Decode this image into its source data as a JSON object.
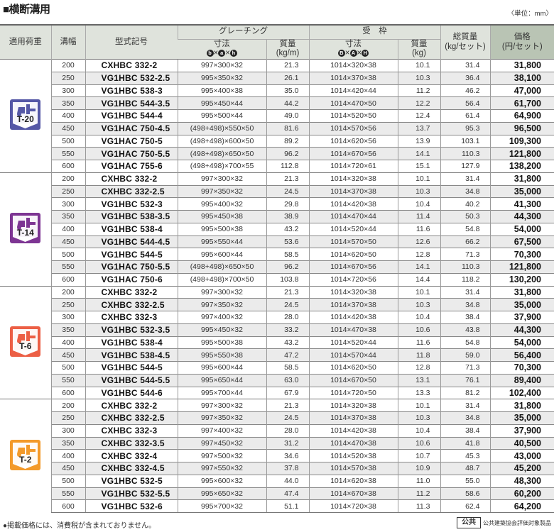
{
  "title": "■横断溝用",
  "unit": "〈単位：mm〉",
  "header": {
    "load": "適用荷重",
    "width": "溝幅",
    "model": "型式記号",
    "grating": "グレーチング",
    "frame": "受　枠",
    "dims": "寸法",
    "grating_dim_letters": [
      "b",
      "a",
      "h"
    ],
    "frame_dim_letters": [
      "B",
      "A",
      "H"
    ],
    "grating_mass": [
      "質量",
      "(kg/m)"
    ],
    "frame_mass": [
      "質量",
      "(kg)"
    ],
    "total": [
      "総質量",
      "(kg/セット)"
    ],
    "price": [
      "価格",
      "(円/セット)"
    ]
  },
  "groups": [
    {
      "load": "T-20",
      "color": "#5558a6",
      "rows": [
        [
          "200",
          "CXHBC 332-2",
          "997×300×32",
          "21.3",
          "1014×320×38",
          "10.1",
          "31.4",
          "31,800"
        ],
        [
          "250",
          "VG1HBC 532-2.5",
          "995×350×32",
          "26.1",
          "1014×370×38",
          "10.3",
          "36.4",
          "38,100"
        ],
        [
          "300",
          "VG1HBC 538-3",
          "995×400×38",
          "35.0",
          "1014×420×44",
          "11.2",
          "46.2",
          "47,000"
        ],
        [
          "350",
          "VG1HBC 544-3.5",
          "995×450×44",
          "44.2",
          "1014×470×50",
          "12.2",
          "56.4",
          "61,700"
        ],
        [
          "400",
          "VG1HBC 544-4",
          "995×500×44",
          "49.0",
          "1014×520×50",
          "12.4",
          "61.4",
          "64,900"
        ],
        [
          "450",
          "VG1HAC 750-4.5",
          "(498+498)×550×50",
          "81.6",
          "1014×570×56",
          "13.7",
          "95.3",
          "96,500"
        ],
        [
          "500",
          "VG1HAC 750-5",
          "(498+498)×600×50",
          "89.2",
          "1014×620×56",
          "13.9",
          "103.1",
          "109,300"
        ],
        [
          "550",
          "VG1HAC 750-5.5",
          "(498+498)×650×50",
          "96.2",
          "1014×670×56",
          "14.1",
          "110.3",
          "121,800"
        ],
        [
          "600",
          "VG1HAC 755-6",
          "(498+498)×700×55",
          "112.8",
          "1014×720×61",
          "15.1",
          "127.9",
          "138,200"
        ]
      ]
    },
    {
      "load": "T-14",
      "color": "#7d3593",
      "rows": [
        [
          "200",
          "CXHBC 332-2",
          "997×300×32",
          "21.3",
          "1014×320×38",
          "10.1",
          "31.4",
          "31,800"
        ],
        [
          "250",
          "CXHBC 332-2.5",
          "997×350×32",
          "24.5",
          "1014×370×38",
          "10.3",
          "34.8",
          "35,000"
        ],
        [
          "300",
          "VG1HBC 532-3",
          "995×400×32",
          "29.8",
          "1014×420×38",
          "10.4",
          "40.2",
          "41,300"
        ],
        [
          "350",
          "VG1HBC 538-3.5",
          "995×450×38",
          "38.9",
          "1014×470×44",
          "11.4",
          "50.3",
          "44,300"
        ],
        [
          "400",
          "VG1HBC 538-4",
          "995×500×38",
          "43.2",
          "1014×520×44",
          "11.6",
          "54.8",
          "54,000"
        ],
        [
          "450",
          "VG1HBC 544-4.5",
          "995×550×44",
          "53.6",
          "1014×570×50",
          "12.6",
          "66.2",
          "67,500"
        ],
        [
          "500",
          "VG1HBC 544-5",
          "995×600×44",
          "58.5",
          "1014×620×50",
          "12.8",
          "71.3",
          "70,300"
        ],
        [
          "550",
          "VG1HAC 750-5.5",
          "(498+498)×650×50",
          "96.2",
          "1014×670×56",
          "14.1",
          "110.3",
          "121,800"
        ],
        [
          "600",
          "VG1HAC 750-6",
          "(498+498)×700×50",
          "103.8",
          "1014×720×56",
          "14.4",
          "118.2",
          "130,200"
        ]
      ]
    },
    {
      "load": "T-6",
      "color": "#ec5f45",
      "rows": [
        [
          "200",
          "CXHBC 332-2",
          "997×300×32",
          "21.3",
          "1014×320×38",
          "10.1",
          "31.4",
          "31,800"
        ],
        [
          "250",
          "CXHBC 332-2.5",
          "997×350×32",
          "24.5",
          "1014×370×38",
          "10.3",
          "34.8",
          "35,000"
        ],
        [
          "300",
          "CXHBC 332-3",
          "997×400×32",
          "28.0",
          "1014×420×38",
          "10.4",
          "38.4",
          "37,900"
        ],
        [
          "350",
          "VG1HBC 532-3.5",
          "995×450×32",
          "33.2",
          "1014×470×38",
          "10.6",
          "43.8",
          "44,300"
        ],
        [
          "400",
          "VG1HBC 538-4",
          "995×500×38",
          "43.2",
          "1014×520×44",
          "11.6",
          "54.8",
          "54,000"
        ],
        [
          "450",
          "VG1HBC 538-4.5",
          "995×550×38",
          "47.2",
          "1014×570×44",
          "11.8",
          "59.0",
          "56,400"
        ],
        [
          "500",
          "VG1HBC 544-5",
          "995×600×44",
          "58.5",
          "1014×620×50",
          "12.8",
          "71.3",
          "70,300"
        ],
        [
          "550",
          "VG1HBC 544-5.5",
          "995×650×44",
          "63.0",
          "1014×670×50",
          "13.1",
          "76.1",
          "89,400"
        ],
        [
          "600",
          "VG1HBC 544-6",
          "995×700×44",
          "67.9",
          "1014×720×50",
          "13.3",
          "81.2",
          "102,400"
        ]
      ]
    },
    {
      "load": "T-2",
      "color": "#f39a2a",
      "rows": [
        [
          "200",
          "CXHBC 332-2",
          "997×300×32",
          "21.3",
          "1014×320×38",
          "10.1",
          "31.4",
          "31,800"
        ],
        [
          "250",
          "CXHBC 332-2.5",
          "997×350×32",
          "24.5",
          "1014×370×38",
          "10.3",
          "34.8",
          "35,000"
        ],
        [
          "300",
          "CXHBC 332-3",
          "997×400×32",
          "28.0",
          "1014×420×38",
          "10.4",
          "38.4",
          "37,900"
        ],
        [
          "350",
          "CXHBC 332-3.5",
          "997×450×32",
          "31.2",
          "1014×470×38",
          "10.6",
          "41.8",
          "40,500"
        ],
        [
          "400",
          "CXHBC 332-4",
          "997×500×32",
          "34.6",
          "1014×520×38",
          "10.7",
          "45.3",
          "43,000"
        ],
        [
          "450",
          "CXHBC 332-4.5",
          "997×550×32",
          "37.8",
          "1014×570×38",
          "10.9",
          "48.7",
          "45,200"
        ],
        [
          "500",
          "VG1HBC 532-5",
          "995×600×32",
          "44.0",
          "1014×620×38",
          "11.0",
          "55.0",
          "48,300"
        ],
        [
          "550",
          "VG1HBC 532-5.5",
          "995×650×32",
          "47.4",
          "1014×670×38",
          "11.2",
          "58.6",
          "60,200"
        ],
        [
          "600",
          "VG1HBC 532-6",
          "995×700×32",
          "51.1",
          "1014×720×38",
          "11.3",
          "62.4",
          "64,200"
        ]
      ]
    }
  ],
  "footer": {
    "note": "●掲載価格には、消費税が含まれておりません。",
    "public_mark": "公共",
    "public_text": "公共建築協会評価対象製品"
  }
}
